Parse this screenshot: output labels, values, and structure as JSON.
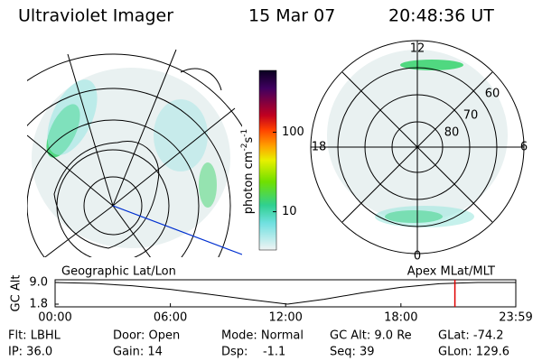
{
  "header": {
    "title": "Ultraviolet Imager",
    "date": "15 Mar 07",
    "time": "20:48:36 UT"
  },
  "colorbar": {
    "label": [
      "photon cm",
      "-2",
      "s",
      "-1"
    ],
    "range": [
      3.3,
      600
    ],
    "log": true,
    "ticks": [
      10,
      100
    ]
  },
  "polar_plot": {
    "mlt_labels": [
      "12",
      "18",
      "6",
      "0"
    ],
    "lat_labels": [
      "60",
      "70",
      "80"
    ]
  },
  "timeline": {
    "left_title": "Geographic Lat/Lon",
    "right_title": "Apex MLat/MLT",
    "ylabel": "GC Alt",
    "ylim": [
      1.8,
      9.0
    ],
    "yticks": [
      {
        "value": 9.0,
        "label": "9.0"
      },
      {
        "value": 1.8,
        "label": "1.8"
      }
    ],
    "xlim": [
      0,
      23.98
    ],
    "xticks": [
      {
        "value": 0,
        "label": "00:00"
      },
      {
        "value": 6,
        "label": "06:00"
      },
      {
        "value": 12,
        "label": "12:00"
      },
      {
        "value": 18,
        "label": "18:00"
      },
      {
        "value": 23.98,
        "label": "23:59"
      }
    ],
    "x": [
      0,
      2,
      4,
      6,
      8,
      10,
      12.1,
      14,
      16,
      18,
      20,
      22,
      23.98
    ],
    "values": [
      9.0,
      8.7,
      7.9,
      6.7,
      5.1,
      3.4,
      1.8,
      3.4,
      5.6,
      7.4,
      8.6,
      9.0,
      9.0
    ],
    "marker_x": 20.81,
    "marker_color": "#e00000"
  },
  "footer": {
    "rows": [
      [
        "Flt: LBHL",
        "Door: Open",
        "Mode: Normal",
        "GC Alt: 9.0 Re",
        "GLat: -74.2"
      ],
      [
        "IP: 36.0",
        "Gain: 14",
        "Dsp:    -1.1",
        "Seq: 39",
        "GLon: 129.6"
      ]
    ]
  }
}
